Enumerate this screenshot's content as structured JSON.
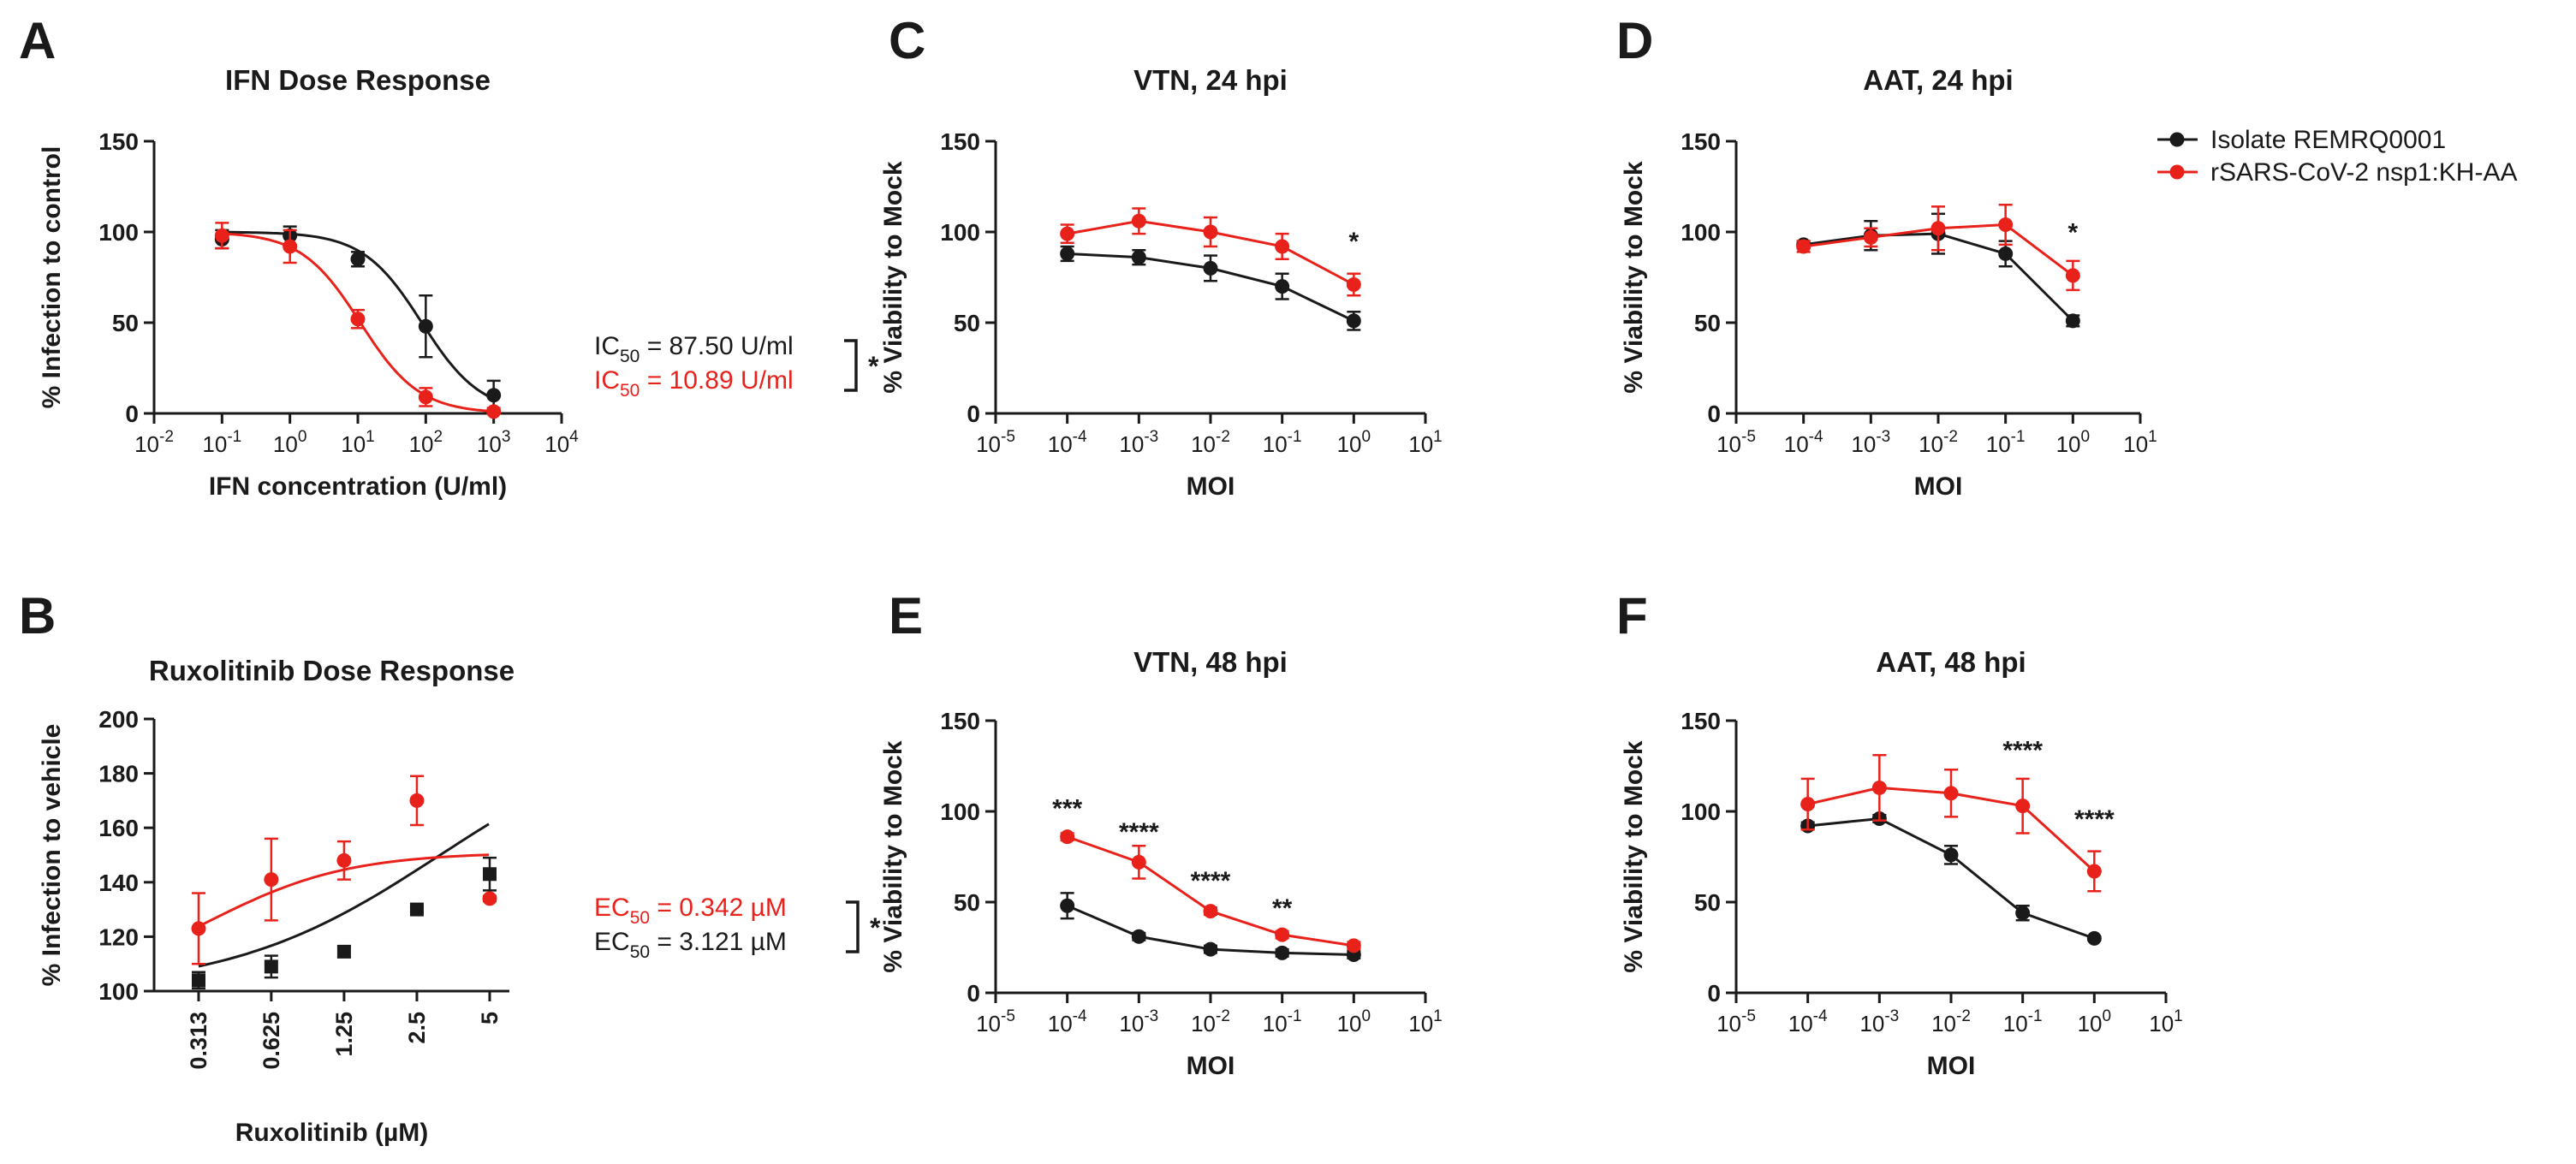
{
  "colors": {
    "black": "#1a1a1a",
    "red": "#e8221b"
  },
  "legend": {
    "entries": [
      {
        "label": "Isolate REMRQ0001",
        "color": "#1a1a1a"
      },
      {
        "label": "rSARS-CoV-2 nsp1:KH-AA",
        "color": "#e8221b"
      }
    ]
  },
  "chart_data": [
    {
      "id": "A",
      "panel_letter": "A",
      "type": "line",
      "title": "IFN Dose Response",
      "xlabel": "IFN concentration  (U/ml)",
      "ylabel": "% Infection to control",
      "xscale": "log10",
      "xlim": [
        -2,
        4
      ],
      "ylim": [
        0,
        150
      ],
      "yticks": [
        0,
        50,
        100,
        150
      ],
      "xticks": [
        {
          "base": "10",
          "exp": "-2"
        },
        {
          "base": "10",
          "exp": "-1"
        },
        {
          "base": "10",
          "exp": "0"
        },
        {
          "base": "10",
          "exp": "1"
        },
        {
          "base": "10",
          "exp": "2"
        },
        {
          "base": "10",
          "exp": "3"
        },
        {
          "base": "10",
          "exp": "4"
        }
      ],
      "fit_curve": true,
      "series": [
        {
          "name": "Isolate REMRQ0001",
          "color": "#1a1a1a",
          "marker": "circle",
          "x": [
            -1,
            0,
            1,
            2,
            3
          ],
          "y": [
            96,
            98,
            85,
            48,
            10
          ],
          "err": [
            5,
            5,
            4,
            17,
            8
          ],
          "fit": {
            "top": 100,
            "bottom": 0,
            "log_ic50": 1.942,
            "hill": 1
          }
        },
        {
          "name": "rSARS-CoV-2 nsp1:KH-AA",
          "color": "#e8221b",
          "marker": "circle",
          "x": [
            -1,
            0,
            1,
            2,
            3
          ],
          "y": [
            98,
            92,
            52,
            9,
            1
          ],
          "err": [
            7,
            9,
            5,
            5,
            2
          ],
          "fit": {
            "top": 100,
            "bottom": 0,
            "log_ic50": 1.037,
            "hill": 1
          }
        }
      ],
      "annotation": {
        "lines": [
          {
            "prefix": "IC",
            "sub": "50",
            "suffix": " = 87.50 U/ml",
            "color": "#1a1a1a"
          },
          {
            "prefix": "IC",
            "sub": "50",
            "suffix": " = 10.89 U/ml",
            "color": "#e8221b"
          }
        ],
        "sig": "*"
      }
    },
    {
      "id": "B",
      "panel_letter": "B",
      "type": "line",
      "title": "Ruxolitinib Dose Response",
      "xlabel": "Ruxolitinib (µM)",
      "ylabel": "% Infection to vehicle",
      "xscale": "log10",
      "ylim": [
        100,
        200
      ],
      "yticks": [
        100,
        120,
        140,
        160,
        180,
        200
      ],
      "xtick_labels": [
        "0.313",
        "0.625",
        "1.25",
        "2.5",
        "5"
      ],
      "fit_curve": true,
      "series": [
        {
          "name": "Isolate REMRQ0001",
          "color": "#1a1a1a",
          "marker": "square",
          "x": [
            0.313,
            0.625,
            1.25,
            2.5,
            5
          ],
          "y": [
            104,
            109,
            114.5,
            130,
            143
          ],
          "err": [
            3,
            4,
            2,
            1,
            6
          ],
          "fit": {
            "bottom": 100,
            "top": 200,
            "log_ec50": 0.494,
            "hill": 1
          }
        },
        {
          "name": "rSARS-CoV-2 nsp1:KH-AA",
          "color": "#e8221b",
          "marker": "circle",
          "x": [
            0.313,
            0.625,
            1.25,
            2.5,
            5
          ],
          "y": [
            123,
            141,
            148,
            170,
            134
          ],
          "err": [
            13,
            15,
            7,
            9,
            1
          ],
          "fit": {
            "bottom": 100,
            "top": 151,
            "log_ec50": -0.466,
            "hill": 1.5
          }
        }
      ],
      "annotation": {
        "lines": [
          {
            "prefix": "EC",
            "sub": "50",
            "suffix": " = 0.342 µM",
            "color": "#e8221b"
          },
          {
            "prefix": "EC",
            "sub": "50",
            "suffix": " = 3.121 µM",
            "color": "#1a1a1a"
          }
        ],
        "sig": "*"
      }
    },
    {
      "id": "C",
      "panel_letter": "C",
      "type": "line",
      "title": "VTN, 24 hpi",
      "xlabel": "MOI",
      "ylabel": "% Viability to Mock",
      "xscale": "log10",
      "xlim": [
        -5,
        1
      ],
      "ylim": [
        0,
        150
      ],
      "yticks": [
        0,
        50,
        100,
        150
      ],
      "xticks": [
        {
          "base": "10",
          "exp": "-5"
        },
        {
          "base": "10",
          "exp": "-4"
        },
        {
          "base": "10",
          "exp": "-3"
        },
        {
          "base": "10",
          "exp": "-2"
        },
        {
          "base": "10",
          "exp": "-1"
        },
        {
          "base": "10",
          "exp": "0"
        },
        {
          "base": "10",
          "exp": "1"
        }
      ],
      "series": [
        {
          "name": "Isolate REMRQ0001",
          "color": "#1a1a1a",
          "marker": "circle",
          "x": [
            -4,
            -3,
            -2,
            -1,
            0
          ],
          "y": [
            88,
            86,
            80,
            70,
            51
          ],
          "err": [
            4,
            4,
            7,
            7,
            5
          ]
        },
        {
          "name": "rSARS-CoV-2 nsp1:KH-AA",
          "color": "#e8221b",
          "marker": "circle",
          "x": [
            -4,
            -3,
            -2,
            -1,
            0
          ],
          "y": [
            99,
            106,
            100,
            92,
            71
          ],
          "err": [
            5,
            7,
            8,
            7,
            6
          ]
        }
      ],
      "sig_marks": [
        {
          "x": 0,
          "y": 90,
          "label": "*"
        }
      ]
    },
    {
      "id": "D",
      "panel_letter": "D",
      "type": "line",
      "title": "AAT, 24 hpi",
      "xlabel": "MOI",
      "ylabel": "% Viability to Mock",
      "xscale": "log10",
      "xlim": [
        -5,
        1
      ],
      "ylim": [
        0,
        150
      ],
      "yticks": [
        0,
        50,
        100,
        150
      ],
      "xticks": [
        {
          "base": "10",
          "exp": "-5"
        },
        {
          "base": "10",
          "exp": "-4"
        },
        {
          "base": "10",
          "exp": "-3"
        },
        {
          "base": "10",
          "exp": "-2"
        },
        {
          "base": "10",
          "exp": "-1"
        },
        {
          "base": "10",
          "exp": "0"
        },
        {
          "base": "10",
          "exp": "1"
        }
      ],
      "series": [
        {
          "name": "Isolate REMRQ0001",
          "color": "#1a1a1a",
          "marker": "circle",
          "x": [
            -4,
            -3,
            -2,
            -1,
            0
          ],
          "y": [
            93,
            98,
            99,
            88,
            51
          ],
          "err": [
            2,
            8,
            11,
            7,
            3
          ]
        },
        {
          "name": "rSARS-CoV-2 nsp1:KH-AA",
          "color": "#e8221b",
          "marker": "circle",
          "x": [
            -4,
            -3,
            -2,
            -1,
            0
          ],
          "y": [
            92,
            97,
            102,
            104,
            76
          ],
          "err": [
            3,
            5,
            12,
            11,
            8
          ]
        }
      ],
      "sig_marks": [
        {
          "x": 0,
          "y": 95,
          "label": "*"
        }
      ]
    },
    {
      "id": "E",
      "panel_letter": "E",
      "type": "line",
      "title": "VTN, 48 hpi",
      "xlabel": "MOI",
      "ylabel": "% Viability to Mock",
      "xscale": "log10",
      "xlim": [
        -5,
        1
      ],
      "ylim": [
        0,
        150
      ],
      "yticks": [
        0,
        50,
        100,
        150
      ],
      "xticks": [
        {
          "base": "10",
          "exp": "-5"
        },
        {
          "base": "10",
          "exp": "-4"
        },
        {
          "base": "10",
          "exp": "-3"
        },
        {
          "base": "10",
          "exp": "-2"
        },
        {
          "base": "10",
          "exp": "-1"
        },
        {
          "base": "10",
          "exp": "0"
        },
        {
          "base": "10",
          "exp": "1"
        }
      ],
      "series": [
        {
          "name": "Isolate REMRQ0001",
          "color": "#1a1a1a",
          "marker": "circle",
          "x": [
            -4,
            -3,
            -2,
            -1,
            0
          ],
          "y": [
            48,
            31,
            24,
            22,
            21
          ],
          "err": [
            7,
            2,
            2,
            2,
            2
          ]
        },
        {
          "name": "rSARS-CoV-2 nsp1:KH-AA",
          "color": "#e8221b",
          "marker": "circle",
          "x": [
            -4,
            -3,
            -2,
            -1,
            0
          ],
          "y": [
            86,
            72,
            45,
            32,
            26
          ],
          "err": [
            2,
            9,
            2,
            2,
            2
          ]
        }
      ],
      "sig_marks": [
        {
          "x": -4,
          "y": 97,
          "label": "***"
        },
        {
          "x": -3,
          "y": 84,
          "label": "****"
        },
        {
          "x": -2,
          "y": 57,
          "label": "****"
        },
        {
          "x": -1,
          "y": 42,
          "label": "**"
        }
      ]
    },
    {
      "id": "F",
      "panel_letter": "F",
      "type": "line",
      "title": "AAT, 48 hpi",
      "xlabel": "MOI",
      "ylabel": "% Viability to Mock",
      "xscale": "log10",
      "xlim": [
        -5,
        1
      ],
      "ylim": [
        0,
        150
      ],
      "yticks": [
        0,
        50,
        100,
        150
      ],
      "xticks": [
        {
          "base": "10",
          "exp": "-5"
        },
        {
          "base": "10",
          "exp": "-4"
        },
        {
          "base": "10",
          "exp": "-3"
        },
        {
          "base": "10",
          "exp": "-2"
        },
        {
          "base": "10",
          "exp": "-1"
        },
        {
          "base": "10",
          "exp": "0"
        },
        {
          "base": "10",
          "exp": "1"
        }
      ],
      "series": [
        {
          "name": "Isolate REMRQ0001",
          "color": "#1a1a1a",
          "marker": "circle",
          "x": [
            -4,
            -3,
            -2,
            -1,
            0
          ],
          "y": [
            92,
            96,
            76,
            44,
            30
          ],
          "err": [
            2,
            2,
            5,
            4,
            1
          ]
        },
        {
          "name": "rSARS-CoV-2 nsp1:KH-AA",
          "color": "#e8221b",
          "marker": "circle",
          "x": [
            -4,
            -3,
            -2,
            -1,
            0
          ],
          "y": [
            104,
            113,
            110,
            103,
            67
          ],
          "err": [
            14,
            18,
            13,
            15,
            11
          ]
        }
      ],
      "sig_marks": [
        {
          "x": -1,
          "y": 129,
          "label": "****"
        },
        {
          "x": 0,
          "y": 91,
          "label": "****"
        }
      ]
    }
  ]
}
